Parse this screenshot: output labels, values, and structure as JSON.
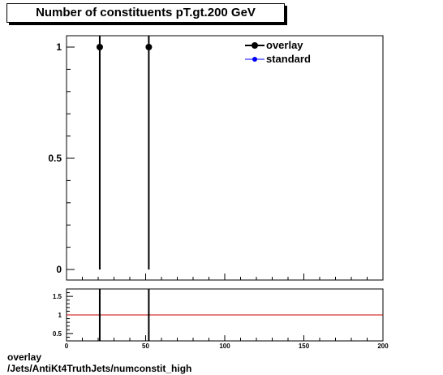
{
  "footer": {
    "line1": "overlay",
    "line2": "/Jets/AntiKt4TruthJets/numconstit_high"
  },
  "chart_data": [
    {
      "type": "scatter",
      "title": "Number of constituents pT.gt.200 GeV",
      "xlim": [
        0,
        200
      ],
      "ylim": [
        0,
        1.05
      ],
      "y_ticks": [
        0,
        0.5,
        1
      ],
      "y_tick_labels": [
        "0",
        "0.5",
        "1"
      ],
      "grid": false,
      "legend_position": "top-right",
      "series": [
        {
          "name": "overlay",
          "color": "#000000",
          "x": [
            21,
            52
          ],
          "y": [
            1,
            1
          ]
        },
        {
          "name": "standard",
          "color": "#0000ff",
          "x": [],
          "y": []
        }
      ]
    },
    {
      "type": "line",
      "xlim": [
        0,
        200
      ],
      "ylim": [
        0.3,
        1.7
      ],
      "x_ticks": [
        0,
        50,
        100,
        150,
        200
      ],
      "x_tick_labels": [
        "0",
        "50",
        "100",
        "150",
        "200"
      ],
      "y_ticks": [
        0.5,
        1,
        1.5
      ],
      "y_tick_labels": [
        "0.5",
        "1",
        "1.5"
      ],
      "reference_line": {
        "y": 1,
        "color": "#cc0000"
      },
      "ratio_points": {
        "x": [
          21,
          52
        ],
        "y": [
          1,
          1
        ]
      }
    }
  ]
}
